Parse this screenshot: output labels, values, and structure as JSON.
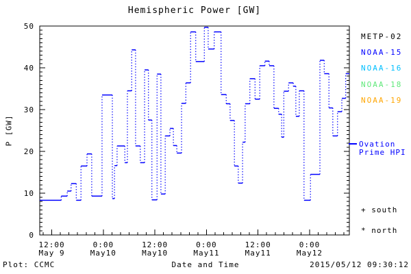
{
  "chart_data": {
    "type": "line",
    "subtype": "dotted-step-histogram",
    "title": "Hemispheric Power [GW]",
    "xlabel": "Date and Time",
    "ylabel": "P [GW]",
    "ylim": [
      0,
      50
    ],
    "y_major": 10,
    "y_minor": 1,
    "y_tick_labels": [
      "0",
      "10",
      "20",
      "30",
      "40",
      "50"
    ],
    "x_unit": "hours since 2015-05-09 00:00 UT",
    "xlim": [
      9.2,
      81.25
    ],
    "x_major": 12,
    "x_minor": 2,
    "grid": false,
    "x_ticks": [
      {
        "t": 12,
        "time": "12:00",
        "date": "May 9"
      },
      {
        "t": 24,
        "time": "0:00",
        "date": "May10"
      },
      {
        "t": 36,
        "time": "12:00",
        "date": "May10"
      },
      {
        "t": 48,
        "time": "0:00",
        "date": "May11"
      },
      {
        "t": 60,
        "time": "12:00",
        "date": "May11"
      },
      {
        "t": 72,
        "time": "0:00",
        "date": "May12"
      }
    ],
    "series": [
      {
        "name": "Ovation Prime HPI",
        "color": "#0000ff",
        "style": "solid horizontal steps, dotted vertical connectors",
        "steps_t_hours_vs_GW": [
          [
            9.2,
            8.3
          ],
          [
            14.2,
            9.3
          ],
          [
            15.6,
            10.5
          ],
          [
            16.5,
            12.3
          ],
          [
            17.7,
            8.3
          ],
          [
            18.8,
            16.5
          ],
          [
            20.2,
            19.4
          ],
          [
            21.3,
            9.3
          ],
          [
            23.7,
            33.5
          ],
          [
            26.1,
            8.7
          ],
          [
            26.6,
            16.6
          ],
          [
            27.2,
            21.3
          ],
          [
            29.0,
            17.3
          ],
          [
            29.6,
            34.5
          ],
          [
            30.6,
            44.3
          ],
          [
            31.5,
            21.3
          ],
          [
            32.6,
            17.3
          ],
          [
            33.6,
            39.5
          ],
          [
            34.5,
            27.5
          ],
          [
            35.3,
            8.4
          ],
          [
            36.5,
            38.5
          ],
          [
            37.4,
            9.8
          ],
          [
            38.4,
            23.7
          ],
          [
            39.5,
            25.5
          ],
          [
            40.3,
            21.4
          ],
          [
            41.1,
            19.6
          ],
          [
            42.2,
            31.5
          ],
          [
            43.2,
            36.4
          ],
          [
            44.3,
            48.6
          ],
          [
            45.5,
            41.5
          ],
          [
            47.5,
            49.7
          ],
          [
            48.4,
            44.5
          ],
          [
            49.8,
            48.6
          ],
          [
            51.4,
            33.6
          ],
          [
            52.6,
            31.4
          ],
          [
            53.5,
            27.4
          ],
          [
            54.5,
            16.5
          ],
          [
            55.4,
            12.4
          ],
          [
            56.4,
            22.2
          ],
          [
            57.0,
            31.4
          ],
          [
            58.1,
            37.4
          ],
          [
            59.3,
            32.5
          ],
          [
            60.4,
            40.5
          ],
          [
            61.6,
            41.6
          ],
          [
            62.6,
            40.5
          ],
          [
            63.7,
            30.3
          ],
          [
            64.8,
            28.9
          ],
          [
            65.5,
            23.4
          ],
          [
            66.0,
            34.4
          ],
          [
            67.1,
            36.4
          ],
          [
            68.2,
            35.6
          ],
          [
            68.8,
            28.4
          ],
          [
            69.6,
            34.5
          ],
          [
            70.7,
            8.3
          ],
          [
            72.2,
            14.5
          ],
          [
            74.4,
            41.8
          ],
          [
            75.4,
            38.6
          ],
          [
            76.5,
            30.4
          ],
          [
            77.4,
            23.7
          ],
          [
            78.5,
            29.5
          ],
          [
            79.5,
            32.7
          ],
          [
            80.4,
            38.6
          ]
        ]
      }
    ],
    "legend_position": "right-outside"
  },
  "legend": {
    "satellites": [
      {
        "label": "METP-02",
        "color": "#000000"
      },
      {
        "label": "NOAA-15",
        "color": "#0000ff"
      },
      {
        "label": "NOAA-16",
        "color": "#00bfff"
      },
      {
        "label": "NOAA-18",
        "color": "#5fe879"
      },
      {
        "label": "NOAA-19",
        "color": "#ffa500"
      }
    ],
    "model": {
      "marker": "dash",
      "line1": "Ovation",
      "line2": "Prime HPI",
      "color": "#0000ff"
    },
    "hemisphere": {
      "south": "+ south",
      "north": "* north"
    }
  },
  "footer": {
    "plot_credit": "Plot: CCMC",
    "timestamp": "2015/05/12 09:30:12"
  },
  "colors": {
    "axis": "#000000",
    "curve": "#0000ff",
    "background": "#ffffff"
  }
}
